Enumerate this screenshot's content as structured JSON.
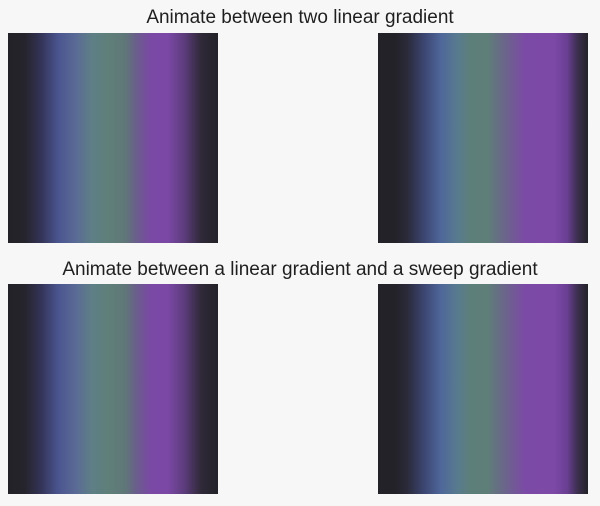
{
  "sections": [
    {
      "title": "Animate between two linear gradient"
    },
    {
      "title": "Animate between a linear gradient and a sweep gradient"
    }
  ],
  "colors": {
    "background": "#f7f7f7",
    "text": "#1f1f1f",
    "gradient_dark": "#232228",
    "gradient_blue": "#4f679a",
    "gradient_teal": "#5f7f79",
    "gradient_purple": "#7b48a6"
  }
}
